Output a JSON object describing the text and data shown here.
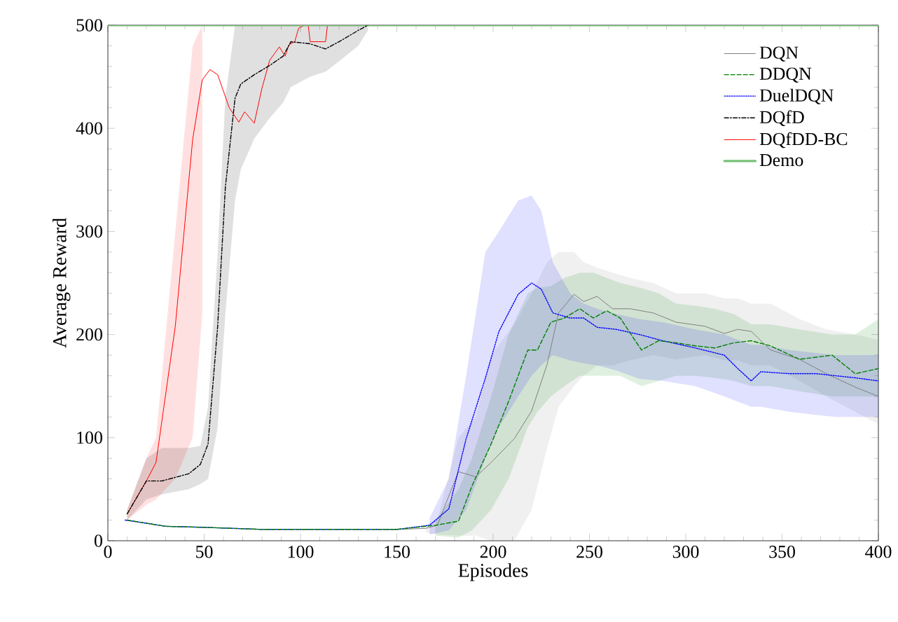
{
  "chart_data": {
    "type": "line",
    "xlabel": "Episodes",
    "ylabel": "Average Reward",
    "xlim": [
      0,
      400
    ],
    "ylim": [
      0,
      500
    ],
    "xticks": [
      0,
      50,
      100,
      150,
      200,
      250,
      300,
      350,
      400
    ],
    "yticks": [
      0,
      100,
      200,
      300,
      400,
      500
    ],
    "grid": false,
    "legend": "top right",
    "marker": "none",
    "series": [
      {
        "name": "DQN",
        "color": "#808080",
        "line_style": "solid",
        "x": [
          10,
          20,
          30,
          50,
          80,
          120,
          150,
          165,
          171,
          182,
          191,
          199,
          211,
          220,
          228,
          234,
          242,
          247,
          254,
          262,
          271,
          283,
          295,
          310,
          320,
          327,
          334,
          344,
          359,
          373,
          388,
          400
        ],
        "values": [
          20,
          17,
          14,
          13,
          11,
          11,
          11,
          12,
          15,
          67,
          62,
          76,
          99,
          126,
          171,
          221,
          239,
          232,
          237,
          225,
          225,
          221,
          212,
          208,
          201,
          205,
          203,
          185,
          176,
          162,
          149,
          140
        ],
        "lower": [
          null,
          null,
          null,
          null,
          null,
          null,
          null,
          8,
          6,
          5,
          5,
          0,
          0,
          30,
          90,
          130,
          150,
          160,
          170,
          170,
          175,
          180,
          176,
          180,
          175,
          175,
          170,
          170,
          155,
          140,
          125,
          113
        ],
        "upper": [
          null,
          null,
          null,
          null,
          null,
          null,
          null,
          16,
          20,
          100,
          120,
          180,
          210,
          240,
          270,
          280,
          280,
          270,
          265,
          260,
          255,
          250,
          240,
          240,
          235,
          235,
          230,
          230,
          215,
          205,
          200,
          195
        ]
      },
      {
        "name": "DDQN",
        "color": "#008000",
        "line_style": "dashed",
        "x": [
          10,
          20,
          30,
          50,
          80,
          120,
          150,
          170,
          182,
          189,
          199,
          208,
          218,
          223,
          230,
          237,
          245,
          252,
          259,
          266,
          277,
          286,
          295,
          305,
          315,
          325,
          334,
          344,
          359,
          376,
          388,
          400
        ],
        "values": [
          20,
          17,
          14,
          13,
          11,
          11,
          11,
          15,
          19,
          53,
          94,
          135,
          185,
          185,
          212,
          216,
          225,
          216,
          223,
          216,
          185,
          194,
          192,
          189,
          187,
          192,
          194,
          189,
          176,
          180,
          162,
          167
        ],
        "lower": [
          null,
          null,
          null,
          null,
          null,
          null,
          null,
          5,
          3,
          10,
          30,
          60,
          110,
          125,
          140,
          150,
          160,
          160,
          160,
          160,
          150,
          155,
          160,
          160,
          158,
          155,
          150,
          150,
          145,
          140,
          140,
          140
        ],
        "upper": [
          null,
          null,
          null,
          null,
          null,
          null,
          null,
          20,
          50,
          80,
          140,
          200,
          240,
          245,
          247,
          255,
          260,
          260,
          255,
          250,
          245,
          240,
          230,
          228,
          225,
          220,
          210,
          210,
          205,
          200,
          200,
          215
        ]
      },
      {
        "name": "DuelDQN",
        "color": "#0000ff",
        "line_style": "dotted",
        "x": [
          9,
          20,
          30,
          50,
          80,
          120,
          150,
          167,
          177,
          186,
          196,
          203,
          213,
          220,
          225,
          231,
          240,
          247,
          254,
          264,
          276,
          288,
          305,
          320,
          327,
          334,
          339,
          354,
          368,
          378,
          388,
          400
        ],
        "values": [
          20,
          17,
          14,
          13,
          11,
          11,
          11,
          15,
          31,
          99,
          158,
          203,
          239,
          250,
          244,
          221,
          216,
          216,
          207,
          205,
          200,
          194,
          187,
          180,
          167,
          155,
          164,
          162,
          162,
          160,
          158,
          155
        ],
        "lower": [
          null,
          null,
          null,
          null,
          null,
          null,
          null,
          6,
          10,
          30,
          80,
          110,
          140,
          160,
          170,
          180,
          175,
          172,
          170,
          165,
          157,
          155,
          150,
          140,
          135,
          130,
          130,
          125,
          122,
          120,
          120,
          120
        ],
        "upper": [
          null,
          null,
          null,
          null,
          null,
          null,
          null,
          22,
          60,
          160,
          280,
          300,
          330,
          335,
          320,
          270,
          240,
          230,
          225,
          220,
          215,
          212,
          205,
          200,
          195,
          190,
          190,
          185,
          182,
          180,
          180,
          180
        ]
      },
      {
        "name": "DQfD",
        "color": "#000000",
        "line_style": "dashdot",
        "x": [
          10,
          20,
          28,
          42,
          48,
          52,
          57,
          61,
          66,
          69,
          76,
          84,
          91,
          95,
          105,
          113,
          120,
          130,
          135
        ],
        "values": [
          26,
          58,
          58,
          65,
          74,
          94,
          208,
          343,
          429,
          443,
          452,
          461,
          470,
          484,
          482,
          477,
          484,
          495,
          500
        ],
        "lower": [
          20,
          40,
          45,
          50,
          55,
          60,
          110,
          220,
          330,
          360,
          390,
          410,
          425,
          440,
          450,
          455,
          465,
          480,
          495
        ],
        "upper": [
          30,
          80,
          90,
          90,
          92,
          130,
          280,
          430,
          500,
          500,
          500,
          500,
          500,
          500,
          500,
          500,
          500,
          500,
          500
        ]
      },
      {
        "name": "DQfDD-BC",
        "color": "#ff0000",
        "line_style": "solid",
        "x": [
          10,
          20,
          25,
          35,
          44,
          49,
          53,
          57,
          63,
          68,
          71,
          76,
          80,
          84,
          89,
          92,
          94,
          97,
          99,
          102,
          104,
          105,
          113,
          114,
          135
        ],
        "values": [
          26,
          58,
          76,
          208,
          389,
          447,
          457,
          452,
          420,
          406,
          416,
          405,
          439,
          466,
          479,
          470,
          481,
          484,
          497,
          500,
          500,
          484,
          484,
          500,
          500
        ],
        "lower": [
          20,
          35,
          40,
          60,
          100,
          220,
          null,
          null,
          null,
          null,
          null,
          null,
          null,
          null,
          null,
          null,
          null,
          null,
          null,
          null,
          null,
          null,
          null,
          null,
          null
        ],
        "upper": [
          30,
          80,
          100,
          300,
          480,
          500,
          null,
          null,
          null,
          null,
          null,
          null,
          null,
          null,
          null,
          null,
          null,
          null,
          null,
          null,
          null,
          null,
          null,
          null,
          null
        ]
      },
      {
        "name": "Demo",
        "color": "#77c077",
        "line_style": "solid",
        "x": [
          0,
          400
        ],
        "values": [
          500,
          500
        ]
      }
    ]
  }
}
